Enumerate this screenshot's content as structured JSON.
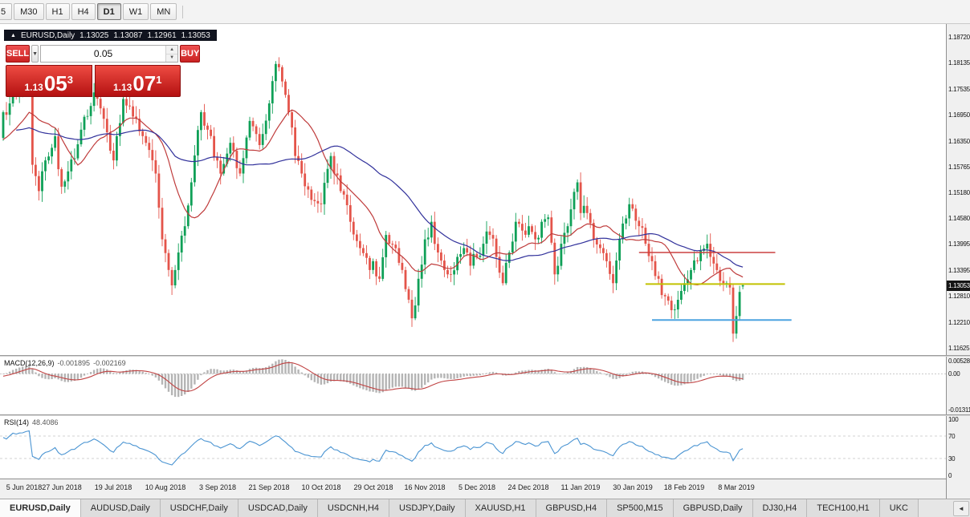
{
  "toolbar": {
    "periods": [
      {
        "label": "5",
        "active": false
      },
      {
        "label": "M30",
        "active": false
      },
      {
        "label": "H1",
        "active": false
      },
      {
        "label": "H4",
        "active": false
      },
      {
        "label": "D1",
        "active": true
      },
      {
        "label": "W1",
        "active": false
      },
      {
        "label": "MN",
        "active": false
      }
    ]
  },
  "chart": {
    "symbol_bar": {
      "symbol": "EURUSD,Daily",
      "open": "1.13025",
      "high": "1.13087",
      "low": "1.12961",
      "close": "1.13053"
    },
    "trade_panel": {
      "sell_label": "SELL",
      "buy_label": "BUY",
      "volume": "0.05",
      "bid": {
        "prefix": "1.13",
        "big": "05",
        "sup": "3"
      },
      "ask": {
        "prefix": "1.13",
        "big": "07",
        "sup": "1"
      }
    },
    "current_price": "1.13053"
  },
  "macd": {
    "label": "MACD(12,26,9)",
    "value_main": "-0.001895",
    "value_signal": "-0.002169",
    "axis_top": "0.005282",
    "axis_zero": "0.00",
    "axis_bottom": "-0.01311"
  },
  "rsi": {
    "label": "RSI(14)",
    "value": "48.4086",
    "axis": [
      "100",
      "70",
      "30",
      "0"
    ]
  },
  "tabs": [
    {
      "label": "EURUSD,Daily",
      "active": true
    },
    {
      "label": "AUDUSD,Daily",
      "active": false
    },
    {
      "label": "USDCHF,Daily",
      "active": false
    },
    {
      "label": "USDCAD,Daily",
      "active": false
    },
    {
      "label": "USDCNH,H4",
      "active": false
    },
    {
      "label": "USDJPY,Daily",
      "active": false
    },
    {
      "label": "XAUUSD,H1",
      "active": false
    },
    {
      "label": "GBPUSD,H4",
      "active": false
    },
    {
      "label": "SP500,M15",
      "active": false
    },
    {
      "label": "GBPUSD,Daily",
      "active": false
    },
    {
      "label": "DJ30,H4",
      "active": false
    },
    {
      "label": "TECH100,H1",
      "active": false
    },
    {
      "label": "UKC",
      "active": false
    }
  ],
  "tab_scroll_left": "◄",
  "chart_data": {
    "type": "candlestick",
    "symbol": "EURUSD",
    "timeframe": "Daily",
    "title_ohlc": {
      "open": 1.13025,
      "high": 1.13087,
      "low": 1.12961,
      "close": 1.13053
    },
    "x_range_days": 229,
    "y_axis": {
      "max_price": 1.1901,
      "min_price": 1.1146,
      "ticks": [
        1.1872,
        1.18135,
        1.17535,
        1.1695,
        1.1635,
        1.15765,
        1.1518,
        1.1458,
        1.13995,
        1.13395,
        1.1281,
        1.1221,
        1.11625
      ]
    },
    "x_axis_labels": [
      [
        2,
        "5 Jun 2018"
      ],
      [
        18,
        "27 Jun 2018"
      ],
      [
        34,
        "19 Jul 2018"
      ],
      [
        50,
        "10 Aug 2018"
      ],
      [
        66,
        "3 Sep 2018"
      ],
      [
        82,
        "21 Sep 2018"
      ],
      [
        98,
        "10 Oct 2018"
      ],
      [
        114,
        "29 Oct 2018"
      ],
      [
        130,
        "16 Nov 2018"
      ],
      [
        146,
        "5 Dec 2018"
      ],
      [
        162,
        "24 Dec 2018"
      ],
      [
        178,
        "11 Jan 2019"
      ],
      [
        194,
        "30 Jan 2019"
      ],
      [
        210,
        "18 Feb 2019"
      ],
      [
        226,
        "8 Mar 2019"
      ]
    ],
    "price_anchors": [
      [
        0,
        1.17
      ],
      [
        2,
        1.172
      ],
      [
        4,
        1.1745
      ],
      [
        6,
        1.176
      ],
      [
        8,
        1.1785
      ],
      [
        9,
        1.158
      ],
      [
        11,
        1.152
      ],
      [
        13,
        1.159
      ],
      [
        16,
        1.1645
      ],
      [
        18,
        1.153
      ],
      [
        20,
        1.1565
      ],
      [
        24,
        1.166
      ],
      [
        28,
        1.1745
      ],
      [
        31,
        1.1685
      ],
      [
        34,
        1.159
      ],
      [
        37,
        1.173
      ],
      [
        40,
        1.169
      ],
      [
        44,
        1.163
      ],
      [
        47,
        1.156
      ],
      [
        49,
        1.141
      ],
      [
        51,
        1.134
      ],
      [
        52,
        1.1305
      ],
      [
        54,
        1.138
      ],
      [
        56,
        1.144
      ],
      [
        58,
        1.154
      ],
      [
        61,
        1.17
      ],
      [
        63,
        1.166
      ],
      [
        67,
        1.156
      ],
      [
        70,
        1.163
      ],
      [
        73,
        1.156
      ],
      [
        76,
        1.168
      ],
      [
        79,
        1.1625
      ],
      [
        82,
        1.172
      ],
      [
        84,
        1.181
      ],
      [
        86,
        1.177
      ],
      [
        88,
        1.17
      ],
      [
        90,
        1.16
      ],
      [
        92,
        1.156
      ],
      [
        95,
        1.15
      ],
      [
        98,
        1.149
      ],
      [
        101,
        1.16
      ],
      [
        104,
        1.152
      ],
      [
        107,
        1.145
      ],
      [
        110,
        1.139
      ],
      [
        113,
        1.134
      ],
      [
        114,
        1.136
      ],
      [
        116,
        1.132
      ],
      [
        118,
        1.142
      ],
      [
        121,
        1.139
      ],
      [
        123,
        1.134
      ],
      [
        126,
        1.123
      ],
      [
        128,
        1.132
      ],
      [
        130,
        1.141
      ],
      [
        132,
        1.145
      ],
      [
        134,
        1.138
      ],
      [
        136,
        1.134
      ],
      [
        138,
        1.133
      ],
      [
        140,
        1.137
      ],
      [
        142,
        1.139
      ],
      [
        144,
        1.135
      ],
      [
        146,
        1.137
      ],
      [
        148,
        1.14
      ],
      [
        150,
        1.142
      ],
      [
        152,
        1.137
      ],
      [
        154,
        1.131
      ],
      [
        156,
        1.138
      ],
      [
        158,
        1.145
      ],
      [
        160,
        1.143
      ],
      [
        162,
        1.144
      ],
      [
        164,
        1.141
      ],
      [
        166,
        1.145
      ],
      [
        168,
        1.146
      ],
      [
        170,
        1.133
      ],
      [
        172,
        1.14
      ],
      [
        174,
        1.144
      ],
      [
        177,
        1.154
      ],
      [
        178,
        1.147
      ],
      [
        180,
        1.147
      ],
      [
        182,
        1.141
      ],
      [
        184,
        1.139
      ],
      [
        186,
        1.136
      ],
      [
        188,
        1.131
      ],
      [
        190,
        1.141
      ],
      [
        193,
        1.149
      ],
      [
        194,
        1.148
      ],
      [
        196,
        1.144
      ],
      [
        198,
        1.14
      ],
      [
        200,
        1.136
      ],
      [
        202,
        1.132
      ],
      [
        204,
        1.128
      ],
      [
        207,
        1.125
      ],
      [
        210,
        1.131
      ],
      [
        212,
        1.134
      ],
      [
        214,
        1.136
      ],
      [
        217,
        1.14
      ],
      [
        218,
        1.137
      ],
      [
        220,
        1.134
      ],
      [
        222,
        1.131
      ],
      [
        224,
        1.13
      ],
      [
        225,
        1.1195
      ],
      [
        226,
        1.1235
      ],
      [
        227,
        1.129
      ],
      [
        228,
        1.13053
      ]
    ],
    "spike_low": {
      "day": 225,
      "price": 1.1176
    },
    "hlines": [
      {
        "name": "resistance-line",
        "price": 1.138,
        "from_day": 196,
        "to_day": 238,
        "color": "#cc4040",
        "width": 1.4
      },
      {
        "name": "pivot-line",
        "price": 1.1308,
        "from_day": 198,
        "to_day": 241,
        "color": "#c2c200",
        "width": 2
      },
      {
        "name": "support-line",
        "price": 1.1226,
        "from_day": 200,
        "to_day": 243,
        "color": "#4da3e0",
        "width": 2
      }
    ],
    "moving_averages": [
      {
        "period": 15,
        "color": "#bf3b3b"
      },
      {
        "period": 45,
        "color": "#31319b"
      }
    ],
    "colors": {
      "up": "#0fa057",
      "down": "#e4544a",
      "macd_hist": "#b5b5b5",
      "macd_signal": "#c04343",
      "rsi_line": "#4a94d2"
    },
    "macd_scale": {
      "top": 0.005282,
      "bottom": -0.01311
    },
    "rsi_levels": [
      70,
      30
    ]
  }
}
